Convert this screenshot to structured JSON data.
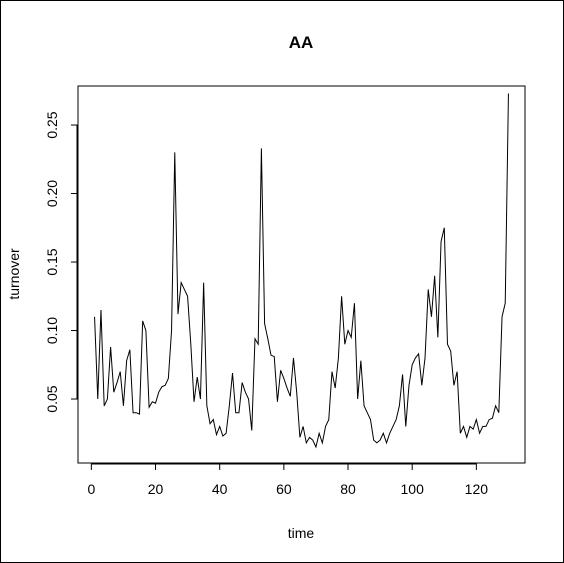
{
  "chart_data": {
    "type": "line",
    "title": "AA",
    "x_label": "time",
    "y_label": "turnover",
    "x": [
      1,
      2,
      3,
      4,
      5,
      6,
      7,
      8,
      9,
      10,
      11,
      12,
      13,
      14,
      15,
      16,
      17,
      18,
      19,
      20,
      21,
      22,
      23,
      24,
      25,
      26,
      27,
      28,
      29,
      30,
      31,
      32,
      33,
      34,
      35,
      36,
      37,
      38,
      39,
      40,
      41,
      42,
      43,
      44,
      45,
      46,
      47,
      48,
      49,
      50,
      51,
      52,
      53,
      54,
      55,
      56,
      57,
      58,
      59,
      60,
      61,
      62,
      63,
      64,
      65,
      66,
      67,
      68,
      69,
      70,
      71,
      72,
      73,
      74,
      75,
      76,
      77,
      78,
      79,
      80,
      81,
      82,
      83,
      84,
      85,
      86,
      87,
      88,
      89,
      90,
      91,
      92,
      93,
      94,
      95,
      96,
      97,
      98,
      99,
      100,
      101,
      102,
      103,
      104,
      105,
      106,
      107,
      108,
      109,
      110,
      111,
      112,
      113,
      114,
      115,
      116,
      117,
      118,
      119,
      120,
      121,
      122,
      123,
      124,
      125,
      126,
      127,
      128,
      129,
      130
    ],
    "series": [
      {
        "name": "turnover",
        "color": "#000000",
        "values": [
          0.11,
          0.05,
          0.115,
          0.045,
          0.05,
          0.088,
          0.055,
          0.062,
          0.07,
          0.045,
          0.078,
          0.086,
          0.04,
          0.04,
          0.039,
          0.107,
          0.1,
          0.044,
          0.048,
          0.047,
          0.055,
          0.059,
          0.06,
          0.065,
          0.1,
          0.23,
          0.112,
          0.135,
          0.13,
          0.125,
          0.09,
          0.048,
          0.066,
          0.05,
          0.135,
          0.045,
          0.032,
          0.035,
          0.024,
          0.03,
          0.023,
          0.025,
          0.045,
          0.069,
          0.04,
          0.04,
          0.062,
          0.055,
          0.05,
          0.027,
          0.094,
          0.09,
          0.233,
          0.105,
          0.094,
          0.082,
          0.081,
          0.048,
          0.071,
          0.065,
          0.058,
          0.052,
          0.08,
          0.055,
          0.022,
          0.03,
          0.018,
          0.022,
          0.02,
          0.015,
          0.025,
          0.018,
          0.03,
          0.035,
          0.07,
          0.058,
          0.08,
          0.125,
          0.09,
          0.1,
          0.095,
          0.12,
          0.05,
          0.078,
          0.045,
          0.04,
          0.035,
          0.02,
          0.018,
          0.02,
          0.025,
          0.018,
          0.025,
          0.03,
          0.035,
          0.045,
          0.068,
          0.03,
          0.06,
          0.075,
          0.08,
          0.083,
          0.06,
          0.08,
          0.13,
          0.11,
          0.14,
          0.095,
          0.165,
          0.175,
          0.09,
          0.085,
          0.06,
          0.07,
          0.025,
          0.03,
          0.022,
          0.03,
          0.028,
          0.035,
          0.025,
          0.03,
          0.03,
          0.035,
          0.036,
          0.045,
          0.04,
          0.11,
          0.12,
          0.273
        ]
      }
    ],
    "xlim": [
      -4.16,
      135.16
    ],
    "xticks": [
      0,
      20,
      40,
      60,
      80,
      100,
      120
    ],
    "ylim": [
      0.0033,
      0.2785
    ],
    "yticks": [
      0.05,
      {
        "value": 0.1,
        "label": "0.10"
      },
      0.15,
      {
        "value": 0.2,
        "label": "0.20"
      },
      0.25
    ]
  }
}
